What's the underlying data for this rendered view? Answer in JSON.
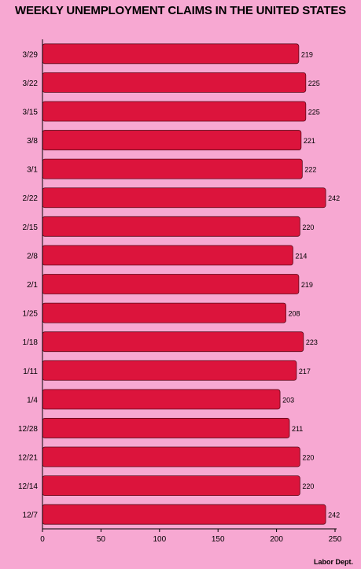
{
  "chart_data": {
    "type": "bar",
    "orientation": "horizontal",
    "title": "WEEKLY UNEMPLOYMENT CLAIMS IN THE UNITED STATES",
    "categories": [
      "3/29",
      "3/22",
      "3/15",
      "3/8",
      "3/1",
      "2/22",
      "2/15",
      "2/8",
      "2/1",
      "1/25",
      "1/18",
      "1/11",
      "1/4",
      "12/28",
      "12/21",
      "12/14",
      "12/7"
    ],
    "values": [
      219,
      225,
      225,
      221,
      222,
      242,
      220,
      214,
      219,
      208,
      223,
      217,
      203,
      211,
      220,
      220,
      242
    ],
    "xlim": [
      0,
      250
    ],
    "xticks": [
      0,
      50,
      100,
      150,
      200,
      250
    ],
    "xlabel": "",
    "ylabel": "",
    "grid": false,
    "bar_color": "#dc143c",
    "bar_edge_color": "#5a0a1a",
    "background_color": "#f7a8d2"
  },
  "source": "Labor Dept."
}
